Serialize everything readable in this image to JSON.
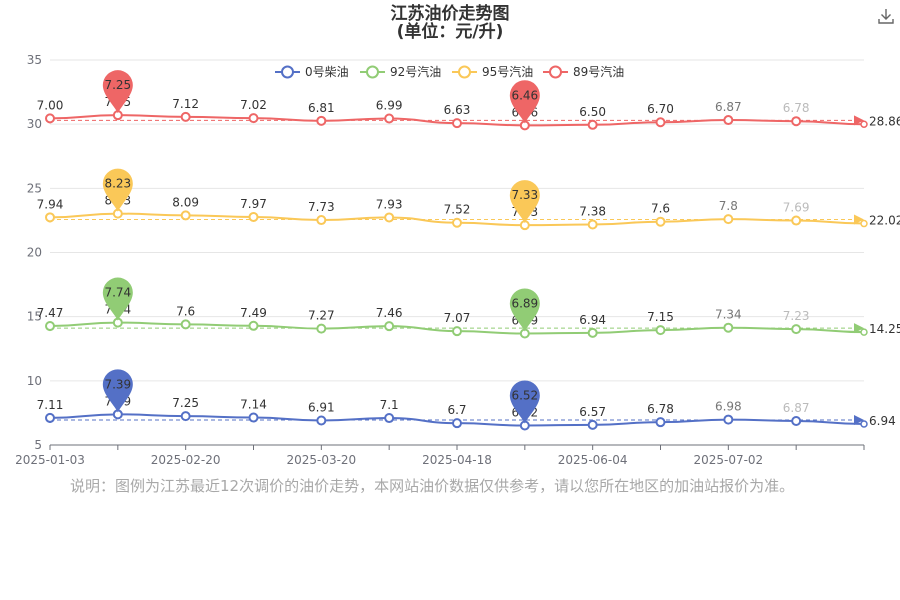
{
  "title": {
    "line1": "江苏油价走势图",
    "line2": "(单位：元/升)"
  },
  "footnote": "说明：图例为江苏最近12次调价的油价走势，本网站油价数据仅供参考，请以您所在地区的加油站报价为准。",
  "toolbar": {
    "download_icon": "download-icon"
  },
  "chart_data": {
    "type": "line",
    "title": "江苏油价走势图",
    "subtitle": "(单位：元/升)",
    "xlabel": "",
    "ylabel": "",
    "ylim": [
      5,
      35
    ],
    "yticks": [
      "5",
      "10",
      "15",
      "20",
      "25",
      "30",
      "35"
    ],
    "xticks": [
      "2025-01-03",
      "2025-02-20",
      "2025-03-20",
      "2025-04-18",
      "2025-06-04",
      "2025-07-02"
    ],
    "grid": true,
    "legend": "top-center",
    "colors": [
      "#5470c6",
      "#91cc75",
      "#fac858",
      "#ee6666"
    ],
    "series": [
      {
        "name": "0号柴油",
        "color": "#5470c6",
        "labels": [
          "7.11",
          "7.39",
          "7.25",
          "7.14",
          "6.91",
          "7.1",
          "6.7",
          "6.52",
          "6.57",
          "6.78",
          "6.98",
          "6.87"
        ],
        "values": [
          7.11,
          7.39,
          7.25,
          7.14,
          6.91,
          7.1,
          6.7,
          6.52,
          6.57,
          6.78,
          6.98,
          6.87
        ],
        "max_label": "7.39",
        "min_label": "6.52",
        "average_label": "6.94"
      },
      {
        "name": "92号汽油",
        "color": "#91cc75",
        "labels": [
          "7.47",
          "7.74",
          "7.6",
          "7.49",
          "7.27",
          "7.46",
          "7.07",
          "6.89",
          "6.94",
          "7.15",
          "7.34",
          "7.23"
        ],
        "values": [
          7.47,
          7.74,
          7.6,
          7.49,
          7.27,
          7.46,
          7.07,
          6.89,
          6.94,
          7.15,
          7.34,
          7.23
        ],
        "max_label": "7.74",
        "min_label": "6.89",
        "average_label": "14.25"
      },
      {
        "name": "95号汽油",
        "color": "#fac858",
        "labels": [
          "7.94",
          "8.23",
          "8.09",
          "7.97",
          "7.73",
          "7.93",
          "7.52",
          "7.33",
          "7.38",
          "7.6",
          "7.8",
          "7.69"
        ],
        "values": [
          7.94,
          8.23,
          8.09,
          7.97,
          7.73,
          7.93,
          7.52,
          7.33,
          7.38,
          7.6,
          7.8,
          7.69
        ],
        "max_label": "8.23",
        "min_label": "7.33",
        "average_label": "22.02"
      },
      {
        "name": "89号汽油",
        "color": "#ee6666",
        "labels": [
          "7.00",
          "7.25",
          "7.12",
          "7.02",
          "6.81",
          "6.99",
          "6.63",
          "6.46",
          "6.50",
          "6.70",
          "6.87",
          "6.78"
        ],
        "values": [
          7.0,
          7.25,
          7.12,
          7.02,
          6.81,
          6.99,
          6.63,
          6.46,
          6.5,
          6.7,
          6.87,
          6.78
        ],
        "max_label": "7.25",
        "min_label": "6.46",
        "average_label": "28.86"
      }
    ]
  }
}
